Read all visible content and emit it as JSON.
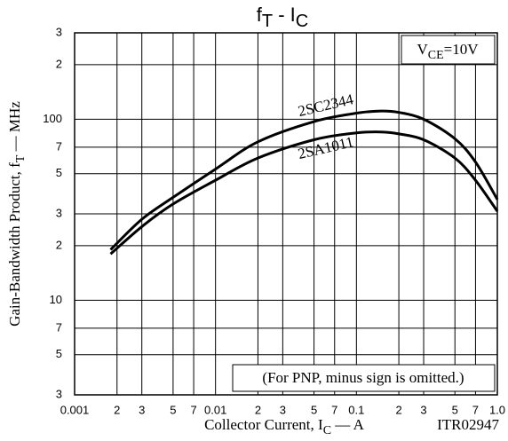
{
  "chart_data": {
    "type": "line",
    "title": [
      "f",
      "T",
      " - I",
      "C"
    ],
    "x_label": [
      "Collector Current, I",
      "C",
      " — A"
    ],
    "y_label": [
      "Gain-Bandwidth Product, f",
      "T",
      " — MHz"
    ],
    "condition": [
      "V",
      "CE",
      "=10V"
    ],
    "note": "(For PNP, minus sign is omitted.)",
    "code": "ITR02947",
    "x_log": true,
    "y_log": true,
    "grid": true,
    "xlim": [
      0.001,
      1
    ],
    "ylim": [
      3,
      300
    ],
    "xticks": [
      0.001,
      {
        "value": 0.002,
        "label": "2"
      },
      {
        "value": 0.003,
        "label": "3"
      },
      {
        "value": 0.005,
        "label": "5"
      },
      {
        "value": 0.007,
        "label": "7"
      },
      0.01,
      {
        "value": 0.02,
        "label": "2"
      },
      {
        "value": 0.03,
        "label": "3"
      },
      {
        "value": 0.05,
        "label": "5"
      },
      {
        "value": 0.07,
        "label": "7"
      },
      0.1,
      {
        "value": 0.2,
        "label": "2"
      },
      {
        "value": 0.3,
        "label": "3"
      },
      {
        "value": 0.5,
        "label": "5"
      },
      {
        "value": 0.7,
        "label": "7"
      },
      {
        "value": 1,
        "label": "1.0"
      }
    ],
    "yticks": [
      3,
      5,
      7,
      10,
      {
        "value": 20,
        "label": "2"
      },
      {
        "value": 30,
        "label": "3"
      },
      {
        "value": 50,
        "label": "5"
      },
      {
        "value": 70,
        "label": "7"
      },
      100,
      {
        "value": 200,
        "label": "2"
      },
      {
        "value": 300,
        "label": "3"
      }
    ],
    "x": [
      0.0018,
      0.003,
      0.005,
      0.01,
      0.02,
      0.05,
      0.1,
      0.15,
      0.2,
      0.3,
      0.5,
      0.7,
      1
    ],
    "series": [
      {
        "name": "2SC2344",
        "color": "#000000",
        "values": [
          19,
          28,
          37,
          53,
          75,
          97,
          108,
          111,
          109,
          100,
          78,
          58,
          36
        ]
      },
      {
        "name": "2SA1011",
        "color": "#000000",
        "values": [
          18,
          25.5,
          34,
          46,
          61,
          77,
          84,
          85,
          83,
          77,
          61,
          46,
          31
        ]
      }
    ]
  }
}
